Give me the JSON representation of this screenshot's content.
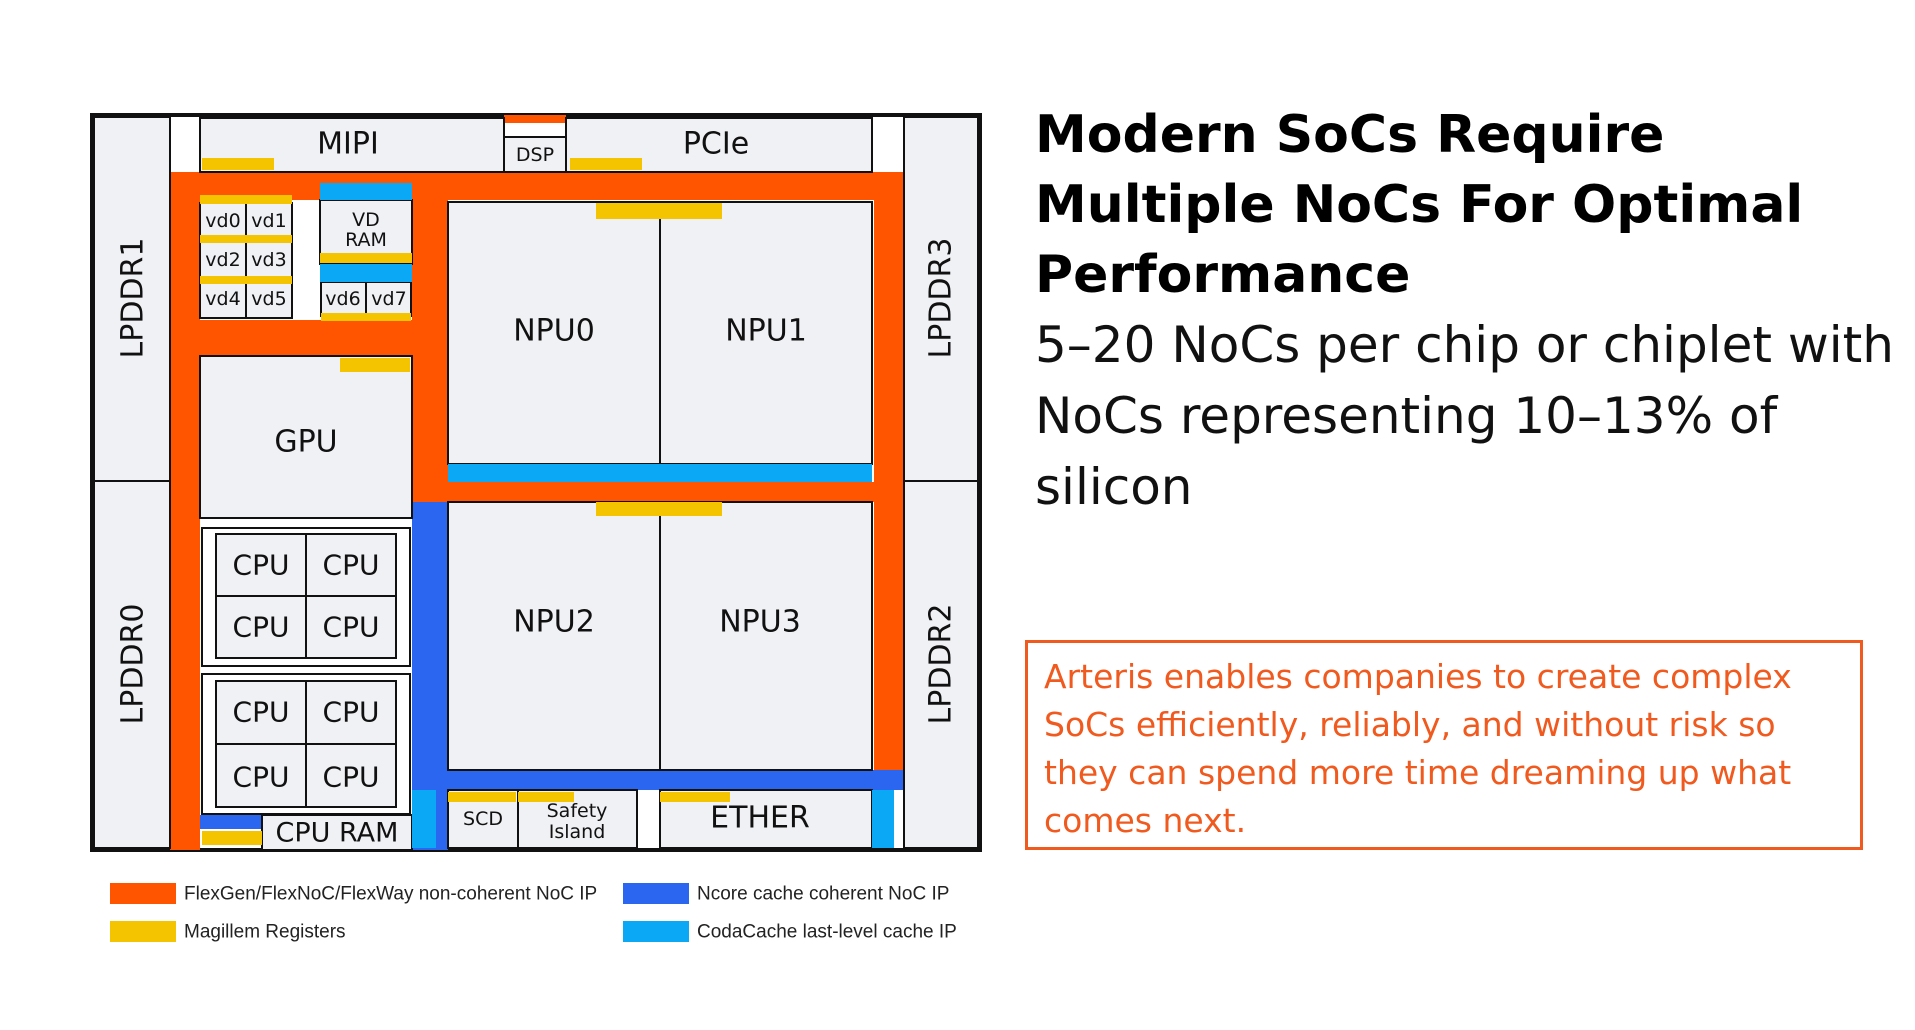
{
  "title": "Modern SoCs Require Multiple NoCs For Optimal Performance",
  "body": "5–20 NoCs per chip or chiplet with NoCs representing 10–13% of silicon",
  "callout": "Arteris enables companies to create complex SoCs efficiently, reliably, and without risk so they can spend more time dreaming up what comes next.",
  "colors": {
    "flexnoc": "#ff5400",
    "magillem": "#f5c400",
    "ncore": "#2b66f0",
    "codacache": "#0aa8f5",
    "accent_text": "#f05a1e"
  },
  "blocks": {
    "mipi": "MIPI",
    "dsp": "DSP",
    "pcie": "PCIe",
    "lpddr1": "LPDDR1",
    "lpddr0": "LPDDR0",
    "lpddr3": "LPDDR3",
    "lpddr2": "LPDDR2",
    "vd": [
      "vd0",
      "vd1",
      "vd2",
      "vd3",
      "vd4",
      "vd5"
    ],
    "vd_ram": [
      "VD",
      "RAM"
    ],
    "vd6": "vd6",
    "vd7": "vd7",
    "gpu": "GPU",
    "npu0": "NPU0",
    "npu1": "NPU1",
    "npu2": "NPU2",
    "npu3": "NPU3",
    "cpu": "CPU",
    "cpu_ram": "CPU RAM",
    "scd": "SCD",
    "safety_island": [
      "Safety",
      "Island"
    ],
    "ether": "ETHER"
  },
  "legend": [
    {
      "label": "FlexGen/FlexNoC/FlexWay non-coherent NoC IP",
      "color": "#ff5400"
    },
    {
      "label": "Magillem Registers",
      "color": "#f5c400"
    },
    {
      "label": "Ncore cache coherent NoC IP",
      "color": "#2b66f0"
    },
    {
      "label": "CodaCache last-level cache IP",
      "color": "#0aa8f5"
    }
  ]
}
